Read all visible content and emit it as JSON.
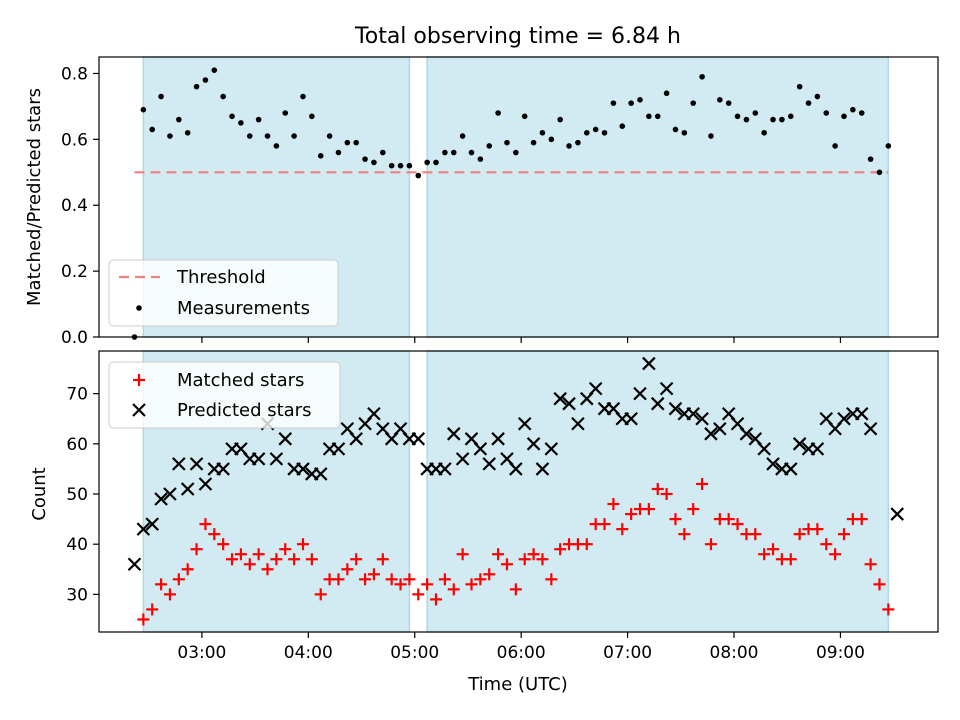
{
  "title": "Total observing time = 6.84 h",
  "colors": {
    "span_fill": "#add8e6",
    "threshold": "#f08080",
    "measurement": "#000000",
    "matched": "#ff0000",
    "predicted": "#000000"
  },
  "chart_data": [
    {
      "type": "scatter",
      "panel": "top",
      "title": "Total observing time = 6.84 h",
      "ylabel": "Matched/Predicted stars",
      "xlabel": "",
      "xlim": [
        "02:02",
        "09:55"
      ],
      "ylim": [
        0,
        0.85
      ],
      "yticks": [
        0.0,
        0.2,
        0.4,
        0.6,
        0.8
      ],
      "ytick_labels": [
        "0.0",
        "0.2",
        "0.4",
        "0.6",
        "0.8"
      ],
      "grid": false,
      "legend": {
        "placement": "lower-left",
        "entries": [
          "Threshold",
          "Measurements"
        ]
      },
      "observing_spans": [
        {
          "start": "02:27",
          "end": "04:57"
        },
        {
          "start": "05:07",
          "end": "09:27"
        }
      ],
      "threshold": {
        "name": "Threshold",
        "y": 0.5,
        "x_start": "02:22",
        "x_end": "09:27"
      },
      "series": [
        {
          "name": "Measurements",
          "x": [
            "02:22",
            "02:27",
            "02:32",
            "02:37",
            "02:42",
            "02:47",
            "02:52",
            "02:57",
            "03:02",
            "03:07",
            "03:12",
            "03:17",
            "03:22",
            "03:27",
            "03:32",
            "03:37",
            "03:42",
            "03:47",
            "03:52",
            "03:57",
            "04:02",
            "04:07",
            "04:12",
            "04:17",
            "04:22",
            "04:27",
            "04:32",
            "04:37",
            "04:42",
            "04:47",
            "04:52",
            "04:57",
            "05:02",
            "05:07",
            "05:12",
            "05:17",
            "05:22",
            "05:27",
            "05:32",
            "05:37",
            "05:42",
            "05:47",
            "05:52",
            "05:57",
            "06:02",
            "06:07",
            "06:12",
            "06:17",
            "06:22",
            "06:27",
            "06:32",
            "06:37",
            "06:42",
            "06:47",
            "06:52",
            "06:57",
            "07:02",
            "07:07",
            "07:12",
            "07:17",
            "07:22",
            "07:27",
            "07:32",
            "07:37",
            "07:42",
            "07:47",
            "07:52",
            "07:57",
            "08:02",
            "08:07",
            "08:12",
            "08:17",
            "08:22",
            "08:27",
            "08:32",
            "08:37",
            "08:42",
            "08:47",
            "08:52",
            "08:57",
            "09:02",
            "09:07",
            "09:12",
            "09:17",
            "09:22",
            "09:27"
          ],
          "y": [
            0.0,
            0.69,
            0.63,
            0.73,
            0.61,
            0.66,
            0.62,
            0.76,
            0.78,
            0.81,
            0.73,
            0.67,
            0.65,
            0.61,
            0.66,
            0.61,
            0.58,
            0.68,
            0.61,
            0.73,
            0.67,
            0.55,
            0.61,
            0.56,
            0.59,
            0.59,
            0.54,
            0.53,
            0.56,
            0.52,
            0.52,
            0.52,
            0.49,
            0.53,
            0.53,
            0.56,
            0.56,
            0.61,
            0.56,
            0.54,
            0.58,
            0.68,
            0.59,
            0.56,
            0.67,
            0.59,
            0.62,
            0.6,
            0.66,
            0.58,
            0.59,
            0.62,
            0.63,
            0.62,
            0.71,
            0.64,
            0.71,
            0.72,
            0.67,
            0.67,
            0.74,
            0.63,
            0.62,
            0.71,
            0.79,
            0.61,
            0.72,
            0.71,
            0.67,
            0.66,
            0.68,
            0.62,
            0.66,
            0.66,
            0.67,
            0.76,
            0.71,
            0.73,
            0.68,
            0.58,
            0.67,
            0.69,
            0.68,
            0.54,
            0.5,
            0.58
          ]
        }
      ]
    },
    {
      "type": "scatter",
      "panel": "bottom",
      "title": "",
      "xlabel": "Time (UTC)",
      "ylabel": "Count",
      "xlim": [
        "02:02",
        "09:55"
      ],
      "ylim": [
        22.5,
        78.5
      ],
      "xticks": [
        "03:00",
        "04:00",
        "05:00",
        "06:00",
        "07:00",
        "08:00",
        "09:00"
      ],
      "yticks": [
        30,
        40,
        50,
        60,
        70
      ],
      "ytick_labels": [
        "30",
        "40",
        "50",
        "60",
        "70"
      ],
      "grid": false,
      "legend": {
        "placement": "upper-left",
        "entries": [
          "Matched stars",
          "Predicted stars"
        ]
      },
      "observing_spans": [
        {
          "start": "02:27",
          "end": "04:57"
        },
        {
          "start": "05:07",
          "end": "09:27"
        }
      ],
      "x": [
        "02:22",
        "02:27",
        "02:32",
        "02:37",
        "02:42",
        "02:47",
        "02:52",
        "02:57",
        "03:02",
        "03:07",
        "03:12",
        "03:17",
        "03:22",
        "03:27",
        "03:32",
        "03:37",
        "03:42",
        "03:47",
        "03:52",
        "03:57",
        "04:02",
        "04:07",
        "04:12",
        "04:17",
        "04:22",
        "04:27",
        "04:32",
        "04:37",
        "04:42",
        "04:47",
        "04:52",
        "04:57",
        "05:02",
        "05:07",
        "05:12",
        "05:17",
        "05:22",
        "05:27",
        "05:32",
        "05:37",
        "05:42",
        "05:47",
        "05:52",
        "05:57",
        "06:02",
        "06:07",
        "06:12",
        "06:17",
        "06:22",
        "06:27",
        "06:32",
        "06:37",
        "06:42",
        "06:47",
        "06:52",
        "06:57",
        "07:02",
        "07:07",
        "07:12",
        "07:17",
        "07:22",
        "07:27",
        "07:32",
        "07:37",
        "07:42",
        "07:47",
        "07:52",
        "07:57",
        "08:02",
        "08:07",
        "08:12",
        "08:17",
        "08:22",
        "08:27",
        "08:32",
        "08:37",
        "08:42",
        "08:47",
        "08:52",
        "08:57",
        "09:02",
        "09:07",
        "09:12",
        "09:17",
        "09:22",
        "09:27",
        "09:32"
      ],
      "series": [
        {
          "name": "Matched stars",
          "marker": "plus",
          "values": [
            null,
            25,
            27,
            32,
            30,
            33,
            35,
            39,
            44,
            42,
            40,
            37,
            38,
            36,
            38,
            35,
            37,
            39,
            37,
            40,
            37,
            30,
            33,
            33,
            35,
            37,
            33,
            34,
            37,
            33,
            32,
            33,
            30,
            32,
            29,
            33,
            31,
            38,
            32,
            33,
            34,
            38,
            36,
            31,
            37,
            38,
            37,
            33,
            39,
            40,
            40,
            40,
            44,
            44,
            48,
            43,
            46,
            47,
            47,
            51,
            50,
            45,
            42,
            47,
            52,
            40,
            45,
            45,
            44,
            42,
            42,
            38,
            39,
            37,
            37,
            42,
            43,
            43,
            40,
            38,
            42,
            45,
            45,
            36,
            32,
            27,
            null
          ]
        },
        {
          "name": "Predicted stars",
          "marker": "x",
          "values": [
            36,
            43,
            44,
            49,
            50,
            56,
            51,
            56,
            52,
            55,
            55,
            59,
            59,
            57,
            57,
            64,
            57,
            61,
            55,
            55,
            54,
            54,
            59,
            59,
            63,
            61,
            64,
            66,
            63,
            61,
            63,
            61,
            61,
            55,
            55,
            55,
            62,
            57,
            61,
            59,
            56,
            61,
            57,
            55,
            64,
            60,
            55,
            59,
            69,
            68,
            64,
            69,
            71,
            67,
            67,
            65,
            65,
            70,
            76,
            68,
            71,
            67,
            66,
            66,
            65,
            62,
            63,
            66,
            64,
            62,
            61,
            59,
            56,
            55,
            55,
            60,
            59,
            59,
            65,
            63,
            65,
            66,
            66,
            63,
            null,
            null,
            46
          ]
        }
      ]
    }
  ]
}
